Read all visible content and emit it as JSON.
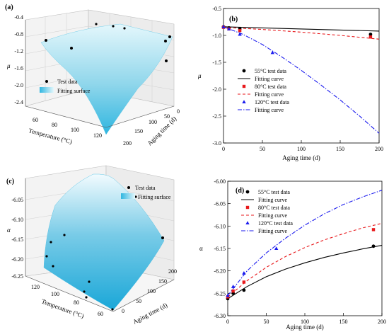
{
  "panels": {
    "a": {
      "label": "(a)",
      "zlabel": "μ",
      "xlabel": "Temperature (°C)",
      "ylabel": "Aging time (d)",
      "z_ticks": [
        "-0.4",
        "-0.8",
        "-1.2",
        "-1.6",
        "-2.0",
        "-2.4"
      ],
      "temp_ticks": [
        "60",
        "80",
        "100",
        "120"
      ],
      "time_ticks": [
        "0",
        "50",
        "100",
        "150",
        "200"
      ],
      "legend": {
        "points": "Test data",
        "surface": "Fitting surface"
      }
    },
    "c": {
      "label": "(c)",
      "zlabel": "α",
      "xlabel": "Temperature (°C)",
      "ylabel": "Aging time (d)",
      "z_ticks": [
        "-6.05",
        "-6.10",
        "-6.15",
        "-6.20",
        "-6.25"
      ],
      "temp_ticks": [
        "120",
        "100",
        "80",
        "60"
      ],
      "time_ticks": [
        "0",
        "50",
        "100",
        "150",
        "200"
      ],
      "legend": {
        "points": "Test data",
        "surface": "Fitting surface"
      }
    }
  },
  "chart_data": [
    {
      "panel": "b",
      "type": "line",
      "title": "(b)",
      "xlabel": "Aging time (d)",
      "ylabel": "μ",
      "xlim": [
        0,
        200
      ],
      "ylim": [
        -3.0,
        -0.5
      ],
      "x_ticks": [
        "0",
        "50",
        "100",
        "150",
        "200"
      ],
      "y_ticks": [
        "-0.5",
        "-1.0",
        "-1.5",
        "-2.0",
        "-2.5",
        "-3.0"
      ],
      "legend_position": "lower-left",
      "series": [
        {
          "name": "55°C test data",
          "kind": "points",
          "marker": "circle",
          "color": "#000000",
          "x": [
            0,
            7,
            21,
            189
          ],
          "y": [
            -0.84,
            -0.86,
            -0.88,
            -0.98
          ]
        },
        {
          "name": "Fitting curve",
          "kind": "curve",
          "style": "solid",
          "color": "#000000",
          "x": [
            0,
            50,
            100,
            150,
            200
          ],
          "y": [
            -0.84,
            -0.86,
            -0.88,
            -0.9,
            -0.92
          ]
        },
        {
          "name": "80°C test data",
          "kind": "points",
          "marker": "square",
          "color": "#e8191c",
          "x": [
            0,
            7,
            21,
            189
          ],
          "y": [
            -0.85,
            -0.88,
            -0.91,
            -1.03
          ]
        },
        {
          "name": "Fitting curve",
          "kind": "curve",
          "style": "dashed",
          "color": "#e8191c",
          "x": [
            0,
            50,
            100,
            150,
            200
          ],
          "y": [
            -0.85,
            -0.89,
            -0.94,
            -1.0,
            -1.07
          ]
        },
        {
          "name": "120°C test data",
          "kind": "points",
          "marker": "triangle",
          "color": "#1a1aee",
          "x": [
            0,
            7,
            21,
            63
          ],
          "y": [
            -0.84,
            -0.88,
            -0.98,
            -1.32
          ]
        },
        {
          "name": "Fitting curve",
          "kind": "curve",
          "style": "dashdot",
          "color": "#1a1aee",
          "x": [
            0,
            25,
            50,
            75,
            100,
            125,
            150,
            175,
            200
          ],
          "y": [
            -0.84,
            -0.98,
            -1.17,
            -1.4,
            -1.65,
            -1.92,
            -2.2,
            -2.5,
            -2.82
          ]
        }
      ]
    },
    {
      "panel": "d",
      "type": "line",
      "title": "(d)",
      "xlabel": "Aging time (d)",
      "ylabel": "α",
      "xlim": [
        0,
        200
      ],
      "ylim": [
        -6.3,
        -6.0
      ],
      "x_ticks": [
        "0",
        "50",
        "100",
        "150",
        "200"
      ],
      "y_ticks": [
        "-6.00",
        "-6.05",
        "-6.10",
        "-6.15",
        "-6.20",
        "-6.25",
        "-6.30"
      ],
      "legend_position": "top-left",
      "series": [
        {
          "name": "55°C test data",
          "kind": "points",
          "marker": "circle",
          "color": "#000000",
          "x": [
            0,
            7,
            21,
            189
          ],
          "y": [
            -6.262,
            -6.25,
            -6.243,
            -6.145
          ]
        },
        {
          "name": "Fitting curve",
          "kind": "curve",
          "style": "solid",
          "color": "#000000",
          "x": [
            0,
            25,
            50,
            75,
            100,
            125,
            150,
            175,
            200
          ],
          "y": [
            -6.262,
            -6.235,
            -6.213,
            -6.196,
            -6.182,
            -6.17,
            -6.16,
            -6.151,
            -6.143
          ]
        },
        {
          "name": "80°C test data",
          "kind": "points",
          "marker": "square",
          "color": "#e8191c",
          "x": [
            0,
            7,
            21,
            189
          ],
          "y": [
            -6.258,
            -6.245,
            -6.225,
            -6.108
          ]
        },
        {
          "name": "Fitting curve",
          "kind": "curve",
          "style": "dashed",
          "color": "#e8191c",
          "x": [
            0,
            25,
            50,
            75,
            100,
            125,
            150,
            175,
            200
          ],
          "y": [
            -6.258,
            -6.222,
            -6.192,
            -6.168,
            -6.148,
            -6.131,
            -6.117,
            -6.104,
            -6.094
          ]
        },
        {
          "name": "120°C test data",
          "kind": "points",
          "marker": "triangle",
          "color": "#1a1aee",
          "x": [
            0,
            7,
            21,
            63
          ],
          "y": [
            -6.255,
            -6.235,
            -6.205,
            -6.15
          ]
        },
        {
          "name": "Fitting curve",
          "kind": "curve",
          "style": "dashdot",
          "color": "#1a1aee",
          "x": [
            0,
            25,
            50,
            75,
            100,
            125,
            150,
            175,
            200
          ],
          "y": [
            -6.255,
            -6.2,
            -6.16,
            -6.127,
            -6.098,
            -6.073,
            -6.052,
            -6.035,
            -6.02
          ]
        }
      ]
    }
  ]
}
